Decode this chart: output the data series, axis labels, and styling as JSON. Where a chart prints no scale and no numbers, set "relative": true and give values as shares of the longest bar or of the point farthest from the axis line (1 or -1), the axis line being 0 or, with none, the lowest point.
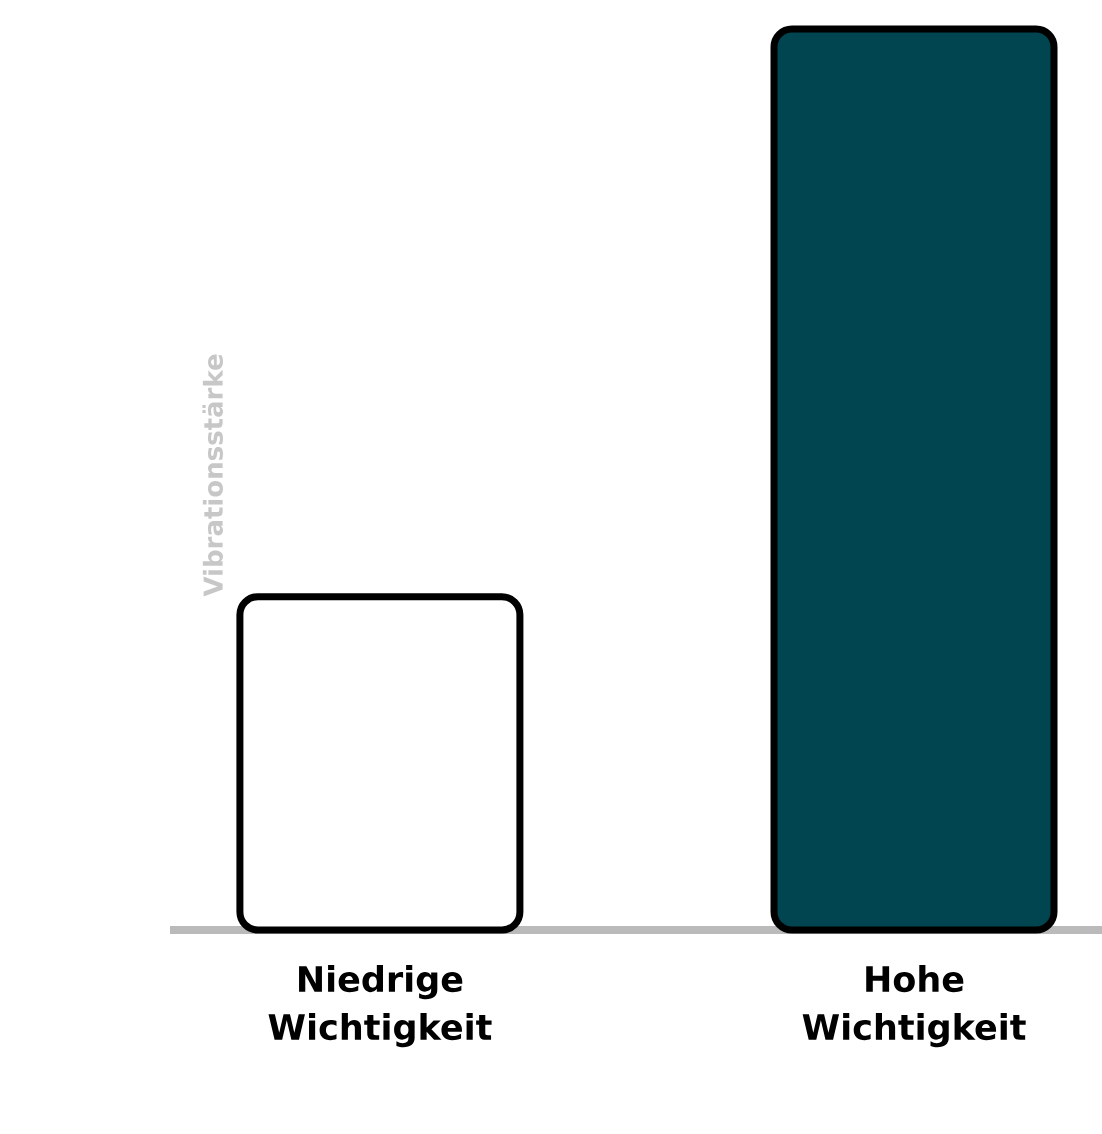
{
  "chart_data": {
    "type": "bar",
    "relative": true,
    "ylabel": "Vibrationsstärke",
    "categories": [
      "Niedrige Wichtigkeit",
      "Hohe Wichtigkeit"
    ],
    "values": [
      0.37,
      1
    ],
    "colors": [
      "#ffffff",
      "#00454f"
    ]
  }
}
